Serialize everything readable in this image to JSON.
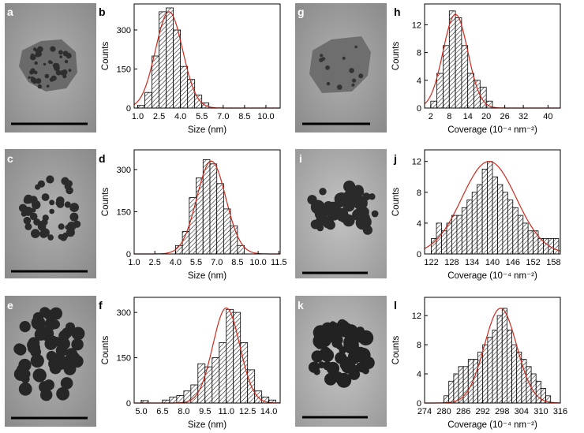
{
  "panel_labels": [
    "a",
    "b",
    "c",
    "d",
    "e",
    "f",
    "g",
    "h",
    "i",
    "j",
    "k",
    "l"
  ],
  "chart_data": [
    {
      "panel": "b",
      "type": "bar",
      "xlabel": "Size (nm)",
      "ylabel": "Counts",
      "x_ticks": [
        "1.0",
        "2.5",
        "4.0",
        "5.5",
        "7.0",
        "8.5",
        "10.0"
      ],
      "y_ticks": [
        "0",
        "150",
        "300"
      ],
      "xlim": [
        0.75,
        11
      ],
      "ylim": [
        0,
        400
      ],
      "bin_width": 0.5,
      "bins": [
        1.0,
        1.5,
        2.0,
        2.5,
        3.0,
        3.5,
        4.0,
        4.5,
        5.0,
        5.5
      ],
      "values": [
        10,
        60,
        200,
        370,
        385,
        300,
        160,
        110,
        50,
        20
      ],
      "fit": {
        "mean": 3.2,
        "sigma": 0.95,
        "peak": 370
      },
      "hatch_color": "#000000",
      "fit_color": "#cc2a1c"
    },
    {
      "panel": "d",
      "type": "bar",
      "xlabel": "Size (nm)",
      "ylabel": "Counts",
      "x_ticks": [
        "1.0",
        "2.5",
        "4.0",
        "5.5",
        "7.0",
        "8.5",
        "10.0",
        "11.5"
      ],
      "y_ticks": [
        "0",
        "150",
        "300"
      ],
      "xlim": [
        1.0,
        11.6
      ],
      "ylim": [
        0,
        370
      ],
      "bin_width": 0.5,
      "bins": [
        4.0,
        4.5,
        5.0,
        5.5,
        6.0,
        6.5,
        7.0,
        7.5,
        8.0,
        8.5
      ],
      "values": [
        30,
        80,
        200,
        270,
        335,
        320,
        250,
        160,
        100,
        30
      ],
      "fit": {
        "mean": 6.6,
        "sigma": 1.05,
        "peak": 330
      },
      "hatch_color": "#000000",
      "fit_color": "#cc2a1c"
    },
    {
      "panel": "f",
      "type": "bar",
      "xlabel": "Size (nm)",
      "ylabel": "Counts",
      "x_ticks": [
        "5.0",
        "6.5",
        "8.0",
        "9.5",
        "11.0",
        "12.5",
        "14.0"
      ],
      "y_ticks": [
        "0",
        "150",
        "300"
      ],
      "xlim": [
        4.5,
        14.8
      ],
      "ylim": [
        0,
        350
      ],
      "bin_width": 0.5,
      "bins": [
        5.0,
        6.5,
        7.0,
        7.5,
        8.0,
        8.5,
        9.0,
        9.5,
        10.0,
        10.5,
        11.0,
        11.5,
        12.0,
        12.5,
        13.0,
        13.5,
        14.0
      ],
      "values": [
        8,
        10,
        20,
        25,
        40,
        60,
        130,
        120,
        150,
        200,
        310,
        300,
        200,
        110,
        40,
        20,
        10
      ],
      "fit": {
        "mean": 11.0,
        "sigma": 0.95,
        "peak": 315
      },
      "hatch_color": "#000000",
      "fit_color": "#cc2a1c"
    },
    {
      "panel": "h",
      "type": "bar",
      "xlabel": "Coverage (10⁻⁴ nm⁻²)",
      "ylabel": "Counts",
      "x_ticks": [
        "2",
        "8",
        "14",
        "20",
        "26",
        "32",
        "40"
      ],
      "y_ticks": [
        "0",
        "4",
        "8",
        "12"
      ],
      "xlim": [
        0,
        44
      ],
      "ylim": [
        0,
        15
      ],
      "bin_width": 2,
      "bins": [
        2,
        4,
        6,
        8,
        10,
        12,
        14,
        16,
        18,
        20
      ],
      "values": [
        1,
        5,
        9,
        14,
        13,
        9,
        5,
        4,
        3,
        1
      ],
      "fit": {
        "mean": 10.0,
        "sigma": 4.0,
        "peak": 13.5
      },
      "hatch_color": "#000000",
      "fit_color": "#cc2a1c"
    },
    {
      "panel": "j",
      "type": "bar",
      "xlabel": "Coverage (10⁻⁴ nm⁻²)",
      "ylabel": "Counts",
      "x_ticks": [
        "122",
        "128",
        "134",
        "140",
        "146",
        "152",
        "158"
      ],
      "y_ticks": [
        "0",
        "4",
        "8",
        "12"
      ],
      "xlim": [
        120,
        160
      ],
      "ylim": [
        0,
        13.5
      ],
      "bin_width": 1.5,
      "bins": [
        122,
        123.5,
        125,
        126.5,
        128,
        129.5,
        131,
        132.5,
        134,
        135.5,
        137,
        138.5,
        140,
        141.5,
        143,
        144.5,
        146,
        147.5,
        149,
        150.5,
        152,
        153.5,
        155,
        156.5,
        158
      ],
      "values": [
        2,
        4,
        3,
        4,
        5,
        5,
        6,
        7,
        8,
        9,
        11,
        12,
        10,
        9,
        8,
        7,
        6,
        5,
        4,
        3,
        3,
        2,
        2,
        2,
        2
      ],
      "fit": {
        "mean": 139.0,
        "sigma": 8.0,
        "peak": 12
      },
      "hatch_color": "#000000",
      "fit_color": "#cc2a1c"
    },
    {
      "panel": "l",
      "type": "bar",
      "xlabel": "Coverage (10⁻⁴ nm⁻²)",
      "ylabel": "Counts",
      "x_ticks": [
        "274",
        "280",
        "286",
        "292",
        "298",
        "304",
        "310",
        "316"
      ],
      "y_ticks": [
        "0",
        "4",
        "8",
        "12"
      ],
      "xlim": [
        274,
        316
      ],
      "ylim": [
        0,
        14.5
      ],
      "bin_width": 1.5,
      "bins": [
        280,
        281.5,
        283,
        284.5,
        286,
        287.5,
        289,
        290.5,
        292,
        293.5,
        295,
        296.5,
        298,
        299.5,
        301,
        302.5,
        304,
        305.5,
        307,
        308.5,
        310,
        311.5
      ],
      "values": [
        1,
        3,
        4,
        5,
        5,
        6,
        6,
        7,
        8,
        9,
        10,
        12,
        13,
        10,
        8,
        7,
        6,
        5,
        4,
        3,
        2,
        1
      ],
      "fit": {
        "mean": 297.5,
        "sigma": 5.0,
        "peak": 13
      },
      "hatch_color": "#000000",
      "fit_color": "#cc2a1c"
    }
  ],
  "images": [
    {
      "panel": "a",
      "style": "small-particles"
    },
    {
      "panel": "c",
      "style": "medium-particles"
    },
    {
      "panel": "e",
      "style": "large-particles"
    },
    {
      "panel": "g",
      "style": "faint-particles"
    },
    {
      "panel": "i",
      "style": "mixed-particles"
    },
    {
      "panel": "k",
      "style": "dense-particles"
    }
  ]
}
